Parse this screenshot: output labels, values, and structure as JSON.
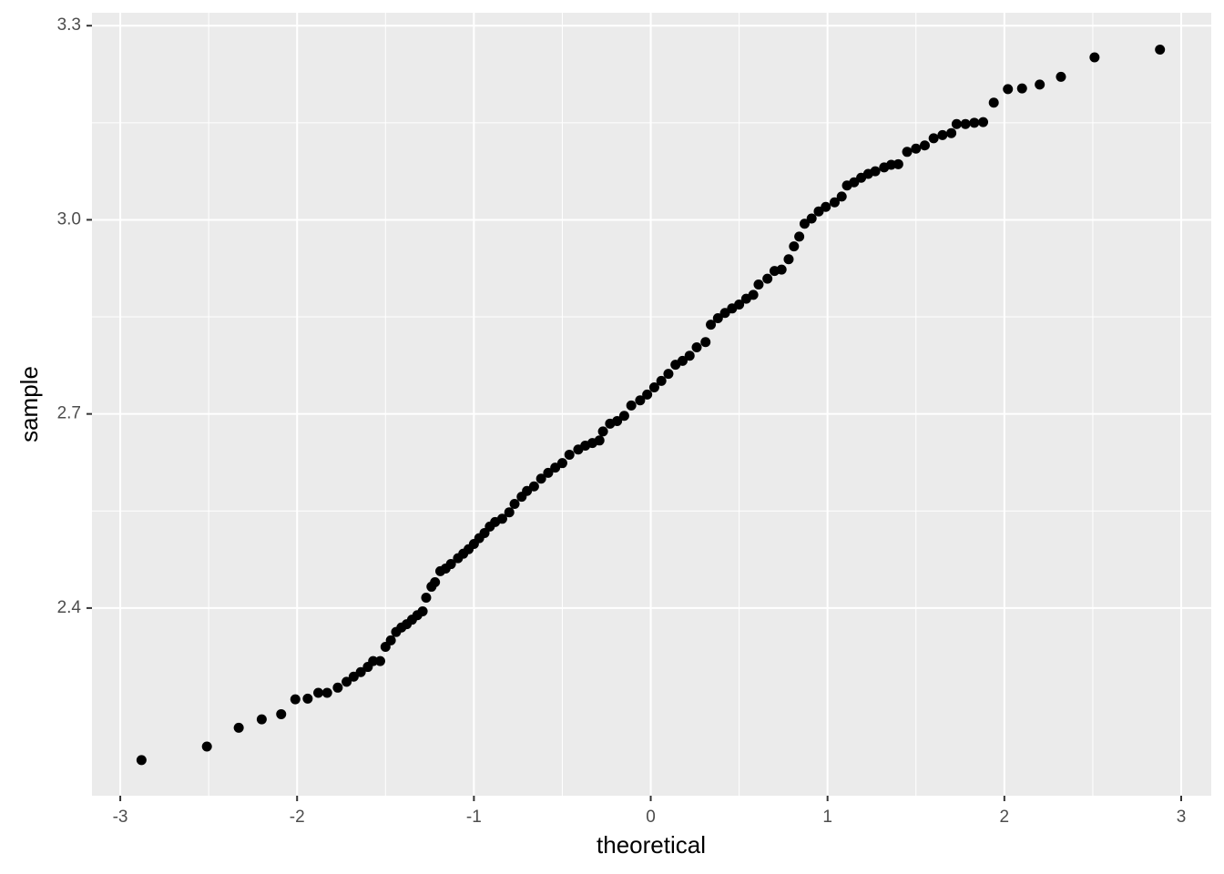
{
  "chart_data": {
    "type": "scatter",
    "x_label": "theoretical",
    "y_label": "sample",
    "xlim": [
      -3.16,
      3.17
    ],
    "ylim": [
      2.11,
      3.32
    ],
    "xticks": [
      {
        "value": -3,
        "label": "-3"
      },
      {
        "value": -2,
        "label": "-2"
      },
      {
        "value": -1,
        "label": "-1"
      },
      0,
      1,
      2,
      3
    ],
    "yticks": [
      2.4,
      2.7,
      {
        "value": 3.0,
        "label": "3.0"
      },
      3.3
    ],
    "grid": true,
    "color": "#000000",
    "x": [
      -2.88,
      -2.51,
      -2.33,
      -2.2,
      -2.09,
      -2.01,
      -1.94,
      -1.88,
      -1.83,
      -1.77,
      -1.72,
      -1.68,
      -1.64,
      -1.6,
      -1.57,
      -1.53,
      -1.5,
      -1.47,
      -1.44,
      -1.41,
      -1.38,
      -1.35,
      -1.32,
      -1.29,
      -1.27,
      -1.24,
      -1.22,
      -1.19,
      -1.16,
      -1.13,
      -1.09,
      -1.06,
      -1.03,
      -1.0,
      -0.97,
      -0.94,
      -0.91,
      -0.88,
      -0.84,
      -0.8,
      -0.77,
      -0.73,
      -0.7,
      -0.66,
      -0.62,
      -0.58,
      -0.54,
      -0.5,
      -0.46,
      -0.41,
      -0.37,
      -0.33,
      -0.29,
      -0.27,
      -0.23,
      -0.19,
      -0.15,
      -0.11,
      -0.06,
      -0.02,
      0.02,
      0.06,
      0.1,
      0.14,
      0.18,
      0.22,
      0.26,
      0.31,
      0.34,
      0.38,
      0.42,
      0.46,
      0.5,
      0.54,
      0.58,
      0.61,
      0.66,
      0.7,
      0.74,
      0.78,
      0.81,
      0.84,
      0.87,
      0.91,
      0.95,
      0.99,
      1.04,
      1.08,
      1.11,
      1.15,
      1.19,
      1.23,
      1.27,
      1.32,
      1.36,
      1.4,
      1.45,
      1.5,
      1.55,
      1.6,
      1.65,
      1.7,
      1.73,
      1.78,
      1.83,
      1.88,
      1.94,
      2.02,
      2.1,
      2.2,
      2.32,
      2.51,
      2.88
    ],
    "values": [
      2.165,
      2.186,
      2.215,
      2.228,
      2.236,
      2.259,
      2.26,
      2.269,
      2.269,
      2.277,
      2.286,
      2.294,
      2.301,
      2.309,
      2.318,
      2.318,
      2.34,
      2.35,
      2.363,
      2.37,
      2.375,
      2.382,
      2.389,
      2.395,
      2.416,
      2.433,
      2.44,
      2.457,
      2.461,
      2.468,
      2.477,
      2.484,
      2.491,
      2.499,
      2.508,
      2.516,
      2.526,
      2.533,
      2.538,
      2.548,
      2.561,
      2.572,
      2.581,
      2.588,
      2.6,
      2.609,
      2.617,
      2.624,
      2.637,
      2.645,
      2.651,
      2.655,
      2.659,
      2.673,
      2.685,
      2.689,
      2.697,
      2.713,
      2.721,
      2.73,
      2.741,
      2.751,
      2.762,
      2.776,
      2.782,
      2.79,
      2.803,
      2.811,
      2.838,
      2.848,
      2.856,
      2.863,
      2.869,
      2.878,
      2.884,
      2.9,
      2.909,
      2.921,
      2.923,
      2.939,
      2.959,
      2.974,
      2.994,
      3.002,
      3.013,
      3.02,
      3.027,
      3.036,
      3.053,
      3.058,
      3.065,
      3.071,
      3.075,
      3.081,
      3.085,
      3.086,
      3.105,
      3.11,
      3.115,
      3.126,
      3.131,
      3.134,
      3.148,
      3.148,
      3.15,
      3.151,
      3.181,
      3.202,
      3.203,
      3.209,
      3.221,
      3.251,
      3.263
    ]
  }
}
